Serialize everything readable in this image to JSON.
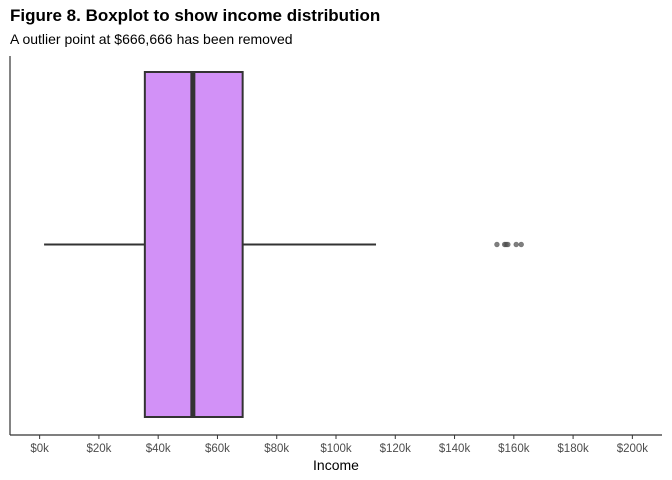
{
  "title": "Figure 8. Boxplot to show income distribution",
  "subtitle": "A outlier point at $666,666 has been removed",
  "colors": {
    "box_fill": "#d291f7",
    "box_stroke": "#333333",
    "outlier": "#555555",
    "axis": "#333333",
    "tick_label": "#4d4d4d"
  },
  "chart_data": {
    "type": "boxplot",
    "orientation": "horizontal",
    "xlabel": "Income",
    "ylabel": "",
    "xlim": [
      -10000,
      210000
    ],
    "x_ticks": [
      0,
      20000,
      40000,
      60000,
      80000,
      100000,
      120000,
      140000,
      160000,
      180000,
      200000
    ],
    "x_tick_labels": [
      "$0k",
      "$20k",
      "$40k",
      "$60k",
      "$80k",
      "$100k",
      "$120k",
      "$140k",
      "$160k",
      "$180k",
      "$200k"
    ],
    "grid": false,
    "box": {
      "whisker_low": 1500,
      "q1": 35500,
      "median": 51700,
      "q3": 68500,
      "whisker_high": 113500
    },
    "outliers": [
      154300,
      156900,
      157400,
      158000,
      160800,
      162500
    ]
  }
}
